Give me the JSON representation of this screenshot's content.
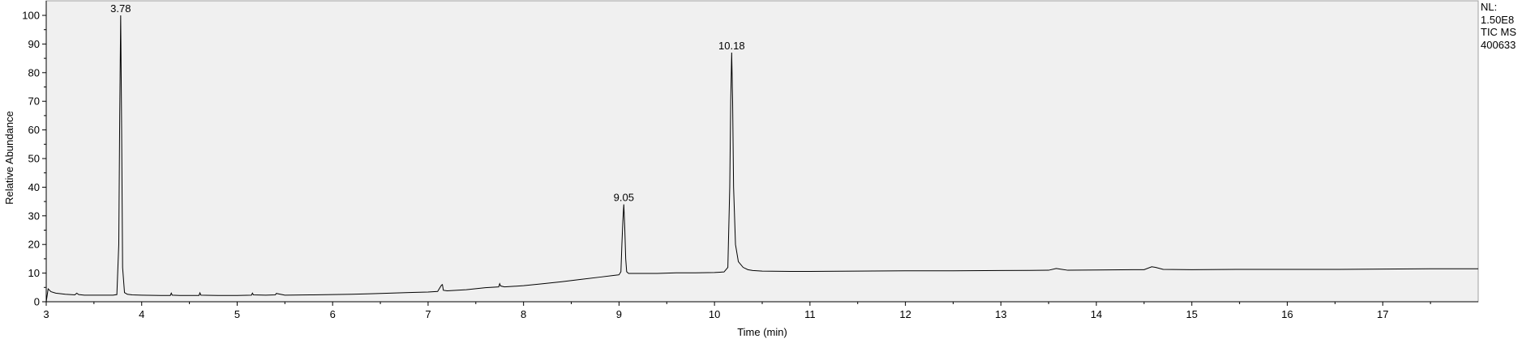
{
  "chart_data": {
    "type": "line",
    "xlabel": "Time (min)",
    "ylabel": "Relative Abundance",
    "xlim": [
      3.0,
      18.0
    ],
    "ylim": [
      0,
      100
    ],
    "x_ticks": [
      3,
      4,
      5,
      6,
      7,
      8,
      9,
      10,
      11,
      12,
      13,
      14,
      15,
      16,
      17
    ],
    "y_ticks": [
      0,
      10,
      20,
      30,
      40,
      50,
      60,
      70,
      80,
      90,
      100
    ],
    "grid": false,
    "background": "#f0f0f0",
    "line_color": "#000000",
    "peak_labels": [
      {
        "x": 3.78,
        "y": 100,
        "label": "3.78"
      },
      {
        "x": 9.05,
        "y": 34,
        "label": "9.05"
      },
      {
        "x": 10.18,
        "y": 87,
        "label": "10.18"
      }
    ],
    "series": [
      {
        "x": [
          3.0,
          3.02,
          3.05,
          3.1,
          3.2,
          3.3,
          3.32,
          3.34,
          3.4,
          3.5,
          3.6,
          3.7,
          3.74,
          3.76,
          3.77,
          3.78,
          3.79,
          3.8,
          3.82,
          3.85,
          3.9,
          4.0,
          4.2,
          4.3,
          4.31,
          4.32,
          4.4,
          4.6,
          4.61,
          4.62,
          4.8,
          5.0,
          5.15,
          5.16,
          5.17,
          5.3,
          5.4,
          5.41,
          5.5,
          5.8,
          6.0,
          6.2,
          6.4,
          6.6,
          6.8,
          7.0,
          7.1,
          7.14,
          7.15,
          7.16,
          7.2,
          7.4,
          7.6,
          7.74,
          7.75,
          7.76,
          7.8,
          8.0,
          8.2,
          8.4,
          8.6,
          8.8,
          8.95,
          9.0,
          9.02,
          9.03,
          9.04,
          9.05,
          9.06,
          9.07,
          9.08,
          9.1,
          9.2,
          9.4,
          9.6,
          9.8,
          10.0,
          10.1,
          10.14,
          10.16,
          10.17,
          10.18,
          10.19,
          10.2,
          10.22,
          10.25,
          10.3,
          10.35,
          10.4,
          10.5,
          10.8,
          11.0,
          11.5,
          12.0,
          12.5,
          13.0,
          13.5,
          13.58,
          13.62,
          13.7,
          14.0,
          14.5,
          14.58,
          14.62,
          14.7,
          15.0,
          15.5,
          16.0,
          16.5,
          17.0,
          17.5,
          18.0
        ],
        "y": [
          0.0,
          4.5,
          3.5,
          3.0,
          2.6,
          2.4,
          3.0,
          2.5,
          2.3,
          2.3,
          2.3,
          2.3,
          2.5,
          20.0,
          65.0,
          100.0,
          60.0,
          12.0,
          3.2,
          2.6,
          2.4,
          2.3,
          2.2,
          2.2,
          3.0,
          2.3,
          2.2,
          2.2,
          3.1,
          2.3,
          2.2,
          2.2,
          2.3,
          3.0,
          2.4,
          2.3,
          2.4,
          2.9,
          2.3,
          2.4,
          2.5,
          2.6,
          2.8,
          3.0,
          3.2,
          3.4,
          3.6,
          5.8,
          6.0,
          4.0,
          3.8,
          4.2,
          4.9,
          5.2,
          6.3,
          5.5,
          5.2,
          5.6,
          6.3,
          7.0,
          7.8,
          8.6,
          9.2,
          9.4,
          10.5,
          20.0,
          28.0,
          34.0,
          26.0,
          15.0,
          10.5,
          9.9,
          9.9,
          9.9,
          10.1,
          10.1,
          10.2,
          10.4,
          12.0,
          40.0,
          70.0,
          87.0,
          70.0,
          40.0,
          20.0,
          14.0,
          12.0,
          11.2,
          10.9,
          10.7,
          10.6,
          10.6,
          10.7,
          10.8,
          10.8,
          10.9,
          11.0,
          11.6,
          11.4,
          11.0,
          11.1,
          11.2,
          12.2,
          12.0,
          11.3,
          11.2,
          11.3,
          11.3,
          11.3,
          11.4,
          11.5,
          11.5
        ]
      }
    ]
  },
  "info_panel": {
    "line1": "NL:",
    "line2": "1.50E8",
    "line3": "TIC  MS",
    "line4": "400633"
  }
}
